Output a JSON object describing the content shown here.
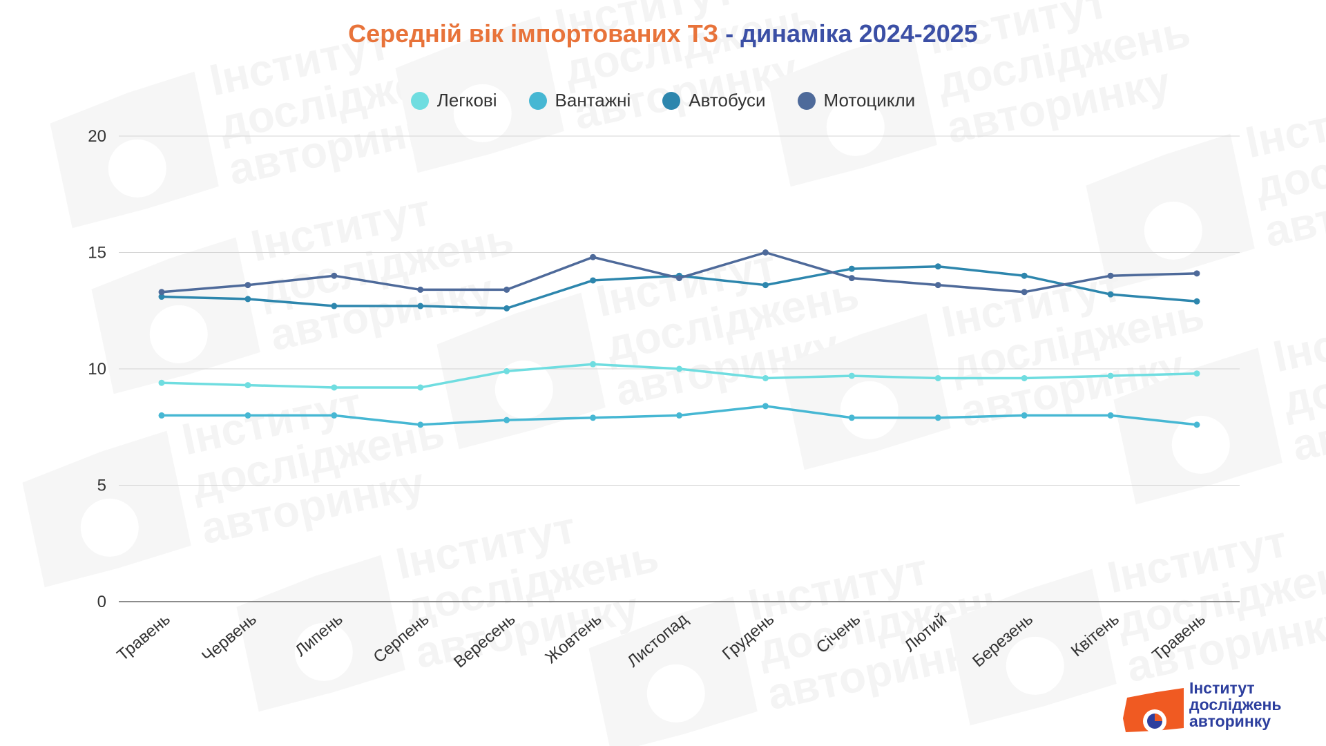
{
  "title": {
    "part1": "Середній вік імпортованих ТЗ",
    "part2": " - динаміка 2024-2025"
  },
  "legend": [
    {
      "label": "Легкові",
      "color": "#6fdde0"
    },
    {
      "label": "Вантажні",
      "color": "#46b7d3"
    },
    {
      "label": "Автобуси",
      "color": "#2d86ad"
    },
    {
      "label": "Мотоцикли",
      "color": "#4e6a9a"
    }
  ],
  "watermark": {
    "line1": "Інститут",
    "line2": "досліджень",
    "line3": "авторинку"
  },
  "logo": {
    "line1": "Інститут",
    "line2": "досліджень",
    "line3": "авторинку",
    "accent_color": "#f05a22",
    "text_color": "#2d3f9e"
  },
  "chart_data": {
    "type": "line",
    "title": "Середній вік імпортованих ТЗ - динаміка 2024-2025",
    "categories": [
      "Травень",
      "Червень",
      "Липень",
      "Серпень",
      "Вересень",
      "Жовтень",
      "Листопад",
      "Грудень",
      "Січень",
      "Лютий",
      "Березень",
      "Квітень",
      "Травень"
    ],
    "ylim": [
      0,
      20
    ],
    "yticks": [
      0,
      5,
      10,
      15,
      20
    ],
    "grid": true,
    "legend_position": "top",
    "series": [
      {
        "name": "Легкові",
        "color": "#6fdde0",
        "values": [
          9.4,
          9.3,
          9.2,
          9.2,
          9.9,
          10.2,
          10.0,
          9.6,
          9.7,
          9.6,
          9.6,
          9.7,
          9.8
        ]
      },
      {
        "name": "Вантажні",
        "color": "#46b7d3",
        "values": [
          8.0,
          8.0,
          8.0,
          7.6,
          7.8,
          7.9,
          8.0,
          8.4,
          7.9,
          7.9,
          8.0,
          8.0,
          7.6
        ]
      },
      {
        "name": "Автобуси",
        "color": "#2d86ad",
        "values": [
          13.1,
          13.0,
          12.7,
          12.7,
          12.6,
          13.8,
          14.0,
          13.6,
          14.3,
          14.4,
          14.0,
          13.2,
          12.9
        ]
      },
      {
        "name": "Мотоцикли",
        "color": "#4e6a9a",
        "values": [
          13.3,
          13.6,
          14.0,
          13.4,
          13.4,
          14.8,
          13.9,
          15.0,
          13.9,
          13.6,
          13.3,
          14.0,
          14.1
        ]
      }
    ]
  }
}
